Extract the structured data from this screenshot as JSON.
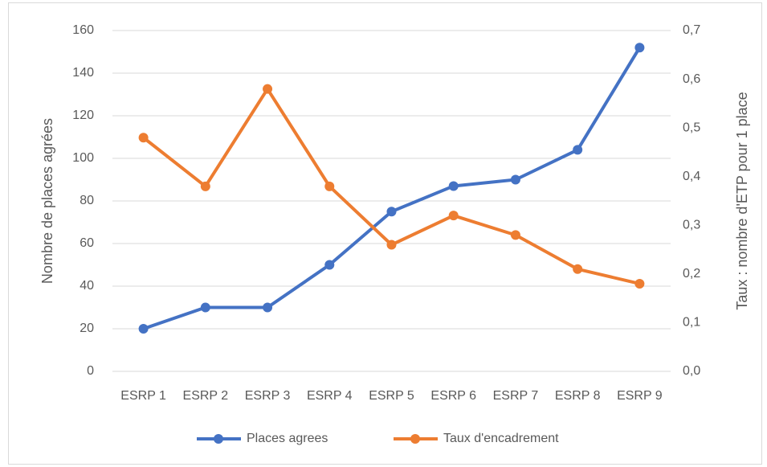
{
  "chart_data": {
    "type": "line",
    "categories": [
      "ESRP 1",
      "ESRP 2",
      "ESRP 3",
      "ESRP 4",
      "ESRP 5",
      "ESRP 6",
      "ESRP 7",
      "ESRP 8",
      "ESRP 9"
    ],
    "series": [
      {
        "name": "Places agrees",
        "color": "#4472c4",
        "values": [
          20,
          30,
          30,
          50,
          75,
          87,
          90,
          104,
          152
        ]
      },
      {
        "name": "Taux d'encadrement",
        "color": "#ed7d31",
        "axis": "y2",
        "values": [
          0.48,
          0.38,
          0.58,
          0.38,
          0.26,
          0.32,
          0.28,
          0.21,
          0.18
        ]
      }
    ],
    "y_label": "Nombre de places agrées",
    "y2_label": "Taux : nombre d'ETP pour 1 place",
    "ylim": [
      0,
      160
    ],
    "yticks": [
      0,
      20,
      40,
      60,
      80,
      100,
      120,
      140,
      160
    ],
    "y2lim": [
      0,
      0.7
    ],
    "y2ticks": [
      {
        "value": 0,
        "label": "0,0"
      },
      {
        "value": 0.1,
        "label": "0,1"
      },
      {
        "value": 0.2,
        "label": "0,2"
      },
      {
        "value": 0.3,
        "label": "0,3"
      },
      {
        "value": 0.4,
        "label": "0,4"
      },
      {
        "value": 0.5,
        "label": "0,5"
      },
      {
        "value": 0.6,
        "label": "0,6"
      },
      {
        "value": 0.7,
        "label": "0,7"
      }
    ],
    "grid": true,
    "legend": "bottom"
  }
}
